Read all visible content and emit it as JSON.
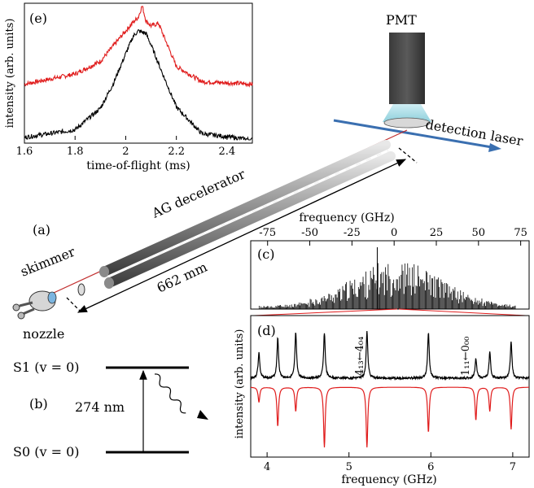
{
  "panel_e": {
    "tag": "(e)",
    "xlabel": "time-of-flight (ms)",
    "ylabel": "intensity (arb. units)",
    "xticks": [
      "1.6",
      "1.8",
      "2",
      "2.2",
      "2.4"
    ]
  },
  "setup": {
    "pmt_label": "PMT",
    "detection_laser_label": "detection laser",
    "decelerator_label": "AG decelerator",
    "skimmer_label": "skimmer",
    "nozzle_label": "nozzle",
    "distance_label": "662 mm",
    "tag_a": "(a)"
  },
  "panel_b": {
    "tag": "(b)",
    "upper_level": "S1 (v = 0)",
    "lower_level": "S0 (v = 0)",
    "wavelength": "274 nm"
  },
  "panel_c": {
    "tag": "(c)",
    "top_axis_label": "frequency (GHz)",
    "top_ticks": [
      "-75",
      "-50",
      "-25",
      "0",
      "25",
      "50",
      "75"
    ]
  },
  "panel_d": {
    "tag": "(d)",
    "ylabel": "intensity (arb. units)",
    "xlabel": "frequency (GHz)",
    "xticks": [
      "4",
      "5",
      "6",
      "7"
    ],
    "annotation_1": "4₁₃←4₀₄",
    "annotation_2": "1₁₁←0₀₀"
  },
  "colors": {
    "experiment": "#000000",
    "simulation": "#e01b1b",
    "laser": "#3a6fb0",
    "pmt_light": "#a8dde6"
  },
  "chart_data": [
    {
      "type": "line",
      "panel": "(e)",
      "xlabel": "time-of-flight (ms)",
      "ylabel": "intensity (arb. units)",
      "xlim": [
        1.6,
        2.5
      ],
      "series": [
        {
          "x": [
            1.6,
            1.8,
            1.9,
            1.95,
            2.0,
            2.03,
            2.05,
            2.065,
            2.08,
            2.1,
            2.13,
            2.15,
            2.2,
            2.3,
            2.5
          ],
          "y": [
            0.44,
            0.52,
            0.62,
            0.74,
            0.86,
            0.93,
            0.97,
            1.06,
            0.94,
            0.9,
            0.92,
            0.82,
            0.58,
            0.46,
            0.44
          ]
        },
        {
          "x": [
            1.6,
            1.8,
            1.9,
            1.95,
            2.0,
            2.03,
            2.05,
            2.08,
            2.1,
            2.15,
            2.2,
            2.3,
            2.5
          ],
          "y": [
            0.02,
            0.08,
            0.25,
            0.44,
            0.68,
            0.82,
            0.86,
            0.84,
            0.75,
            0.5,
            0.26,
            0.05,
            0.0
          ]
        }
      ]
    },
    {
      "type": "bar",
      "panel": "(c)",
      "xlabel": "frequency (GHz)",
      "xlim": [
        -85,
        80
      ]
    },
    {
      "type": "line",
      "panel": "(d)",
      "xlabel": "frequency (GHz)",
      "ylabel": "intensity (arb. units)",
      "xlim": [
        3.8,
        7.2
      ],
      "peaks_ghz": [
        3.9,
        4.13,
        4.35,
        4.7,
        5.22,
        5.97,
        6.55,
        6.72,
        6.98
      ],
      "series": [
        {
          "peak_heights": [
            0.45,
            0.7,
            0.8,
            0.8,
            0.82,
            0.8,
            0.35,
            0.45,
            0.65
          ]
        },
        {
          "peak_depths": [
            0.25,
            0.65,
            0.4,
            1.0,
            1.0,
            0.75,
            0.55,
            0.4,
            0.7
          ]
        }
      ]
    }
  ]
}
